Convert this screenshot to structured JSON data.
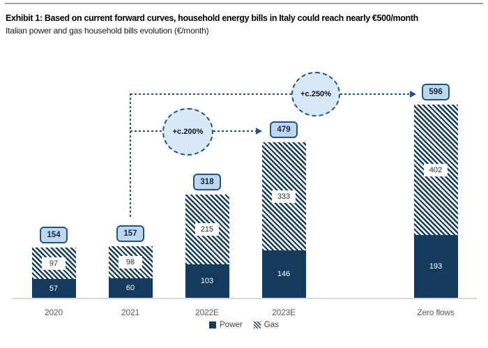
{
  "header": {
    "title": "Exhibit 1: Based on current forward curves, household energy bills in Italy could reach nearly €500/month",
    "subtitle": "Italian power and gas household bills evolution (€/month)"
  },
  "chart_data": {
    "type": "bar",
    "stacked": true,
    "categories": [
      "2020",
      "2021",
      "2022E",
      "2023E",
      "Zero flows"
    ],
    "series": [
      {
        "name": "Power",
        "values": [
          57,
          60,
          103,
          146,
          193
        ]
      },
      {
        "name": "Gas",
        "values": [
          97,
          98,
          215,
          333,
          402
        ]
      }
    ],
    "totals": [
      154,
      157,
      318,
      479,
      596
    ],
    "annotations": [
      {
        "label": "+c.200%",
        "from": "2021",
        "to": "2023E"
      },
      {
        "label": "+c.250%",
        "from": "2021",
        "to": "Zero flows"
      }
    ],
    "legend": [
      "Power",
      "Gas"
    ],
    "legend_position": "bottom",
    "ylim": [
      0,
      640
    ],
    "grid": false,
    "xlabel": "",
    "ylabel": ""
  },
  "colors": {
    "power": "#143a5e",
    "hatch": "#143a5e",
    "label_box_bg": "#bdd7ee",
    "label_box_border": "#24527e",
    "annotation_circle_bg": "#d7e8f7",
    "axis_line": "#d9d9d9",
    "axis_label_text": "#595959",
    "top_rule": "#9d9d9d"
  }
}
